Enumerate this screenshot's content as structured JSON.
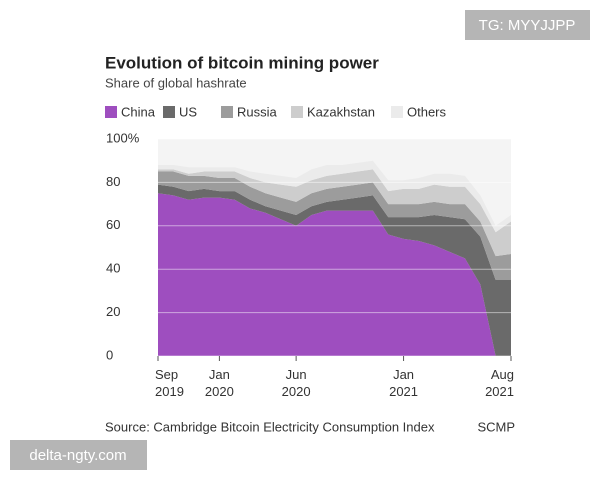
{
  "chart_data": {
    "type": "stacked_area",
    "title": "Evolution of bitcoin mining power",
    "subtitle": "Share of global hashrate",
    "source": "Source: Cambridge Bitcoin Electricity Consumption Index",
    "credit": "SCMP",
    "categories": [
      "Sep 2019",
      null,
      null,
      null,
      "Jan 2020",
      null,
      null,
      null,
      null,
      "Jun 2020",
      null,
      null,
      null,
      null,
      null,
      null,
      "Jan 2021",
      null,
      null,
      null,
      null,
      null,
      null,
      "Aug 2021"
    ],
    "series": [
      {
        "name": "China",
        "color": "#9e4ebf",
        "values": [
          75,
          74,
          72,
          73,
          73,
          72,
          68,
          66,
          63,
          60,
          65,
          67,
          67,
          67,
          67,
          56,
          54,
          53,
          51,
          48,
          45,
          33,
          0,
          0
        ]
      },
      {
        "name": "US",
        "color": "#6a6a6a",
        "values": [
          4,
          4,
          4,
          4,
          3,
          4,
          4,
          3,
          4,
          5,
          4,
          4,
          5,
          6,
          7,
          8,
          10,
          11,
          14,
          16,
          18,
          22,
          35,
          35
        ]
      },
      {
        "name": "Russia",
        "color": "#9c9c9c",
        "values": [
          6,
          7,
          7,
          6,
          6,
          6,
          6,
          6,
          6,
          6,
          6,
          6,
          6,
          6,
          6,
          6,
          6,
          6,
          6,
          6,
          7,
          7,
          11,
          12
        ]
      },
      {
        "name": "Kazakhstan",
        "color": "#cdcdcd",
        "values": [
          1,
          1,
          1,
          2,
          3,
          3,
          4,
          5,
          6,
          7,
          6,
          6,
          6,
          6,
          6,
          6,
          7,
          7,
          8,
          8,
          8,
          8,
          11,
          15
        ]
      },
      {
        "name": "Others",
        "color": "#ebebeb",
        "values": [
          2,
          2,
          3,
          2,
          2,
          2,
          3,
          4,
          4,
          4,
          5,
          5,
          4,
          4,
          4,
          5,
          4,
          5,
          5,
          6,
          5,
          4,
          3,
          3
        ]
      }
    ],
    "ylim": [
      0,
      100
    ],
    "yticks": [
      0,
      20,
      40,
      60,
      80,
      {
        "value": 100,
        "label": "100%"
      }
    ],
    "grid": true,
    "legend": "top-left"
  },
  "watermarks": [
    "TG: MYYJJPP",
    "delta-ngty.com"
  ]
}
